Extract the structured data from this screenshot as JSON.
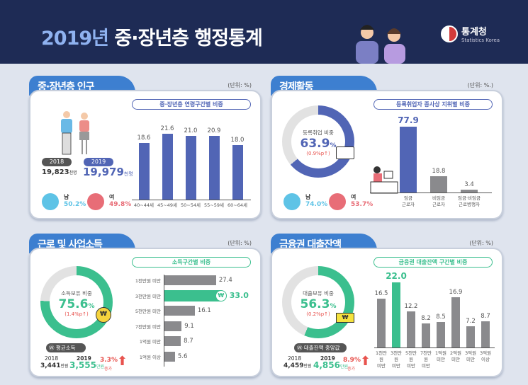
{
  "header": {
    "year": "2019년",
    "title": "중·장년층 행정통계",
    "logo_kr": "통계청",
    "logo_en": "Statistics Korea"
  },
  "population": {
    "title": "중·장년층 인구",
    "unit": "(단위: %)",
    "chart_title": "중·장년층 연령구간별 비중",
    "y2018": "2018",
    "v2018": "19,823",
    "v2018_unit": "천명",
    "y2019": "2019",
    "v2019": "19,979",
    "v2019_unit": "천명",
    "male_label": "남",
    "male": "50.2%",
    "female_label": "여",
    "female": "49.8%"
  },
  "economy": {
    "title": "경제활동",
    "unit": "(단위: %.)",
    "chart_title": "등록취업자 종사상 지위별 비중",
    "donut_label": "등록취업 비중",
    "donut_value": "63.9",
    "donut_pct": "%",
    "donut_change": "(0.9%p↑)",
    "donut_fraction": 0.639,
    "male_label": "남",
    "male": "74.0%",
    "female_label": "여",
    "female": "53.7%"
  },
  "income": {
    "title": "근로 및 사업소득",
    "unit": "(단위: %)",
    "chart_title": "소득구간별 비중",
    "donut_label": "소득보유 비중",
    "donut_value": "75.6",
    "donut_pct": "%",
    "donut_change": "(1.4%p↑)",
    "donut_fraction": 0.756,
    "avg_label": "평균소득",
    "y2018": "2018",
    "v2018": "3,441",
    "v2019_label": "2019",
    "v2019": "3,555",
    "unit_man": "만원",
    "increase": "3.3%",
    "increase_label": "증가"
  },
  "loan": {
    "title": "금융권 대출잔액",
    "unit": "(단위: %)",
    "chart_title": "금융권 대출잔액 구간별 비중",
    "donut_label": "대출보유 비중",
    "donut_value": "56.3",
    "donut_pct": "%",
    "donut_change": "(0.2%p↑)",
    "donut_fraction": 0.563,
    "median_label": "대출잔액 중앙값",
    "y2018": "2018",
    "v2018": "4,459",
    "v2019_label": "2019",
    "v2019": "4,856",
    "unit_man": "만원",
    "increase": "8.9%",
    "increase_label": "증가"
  },
  "chart_data": [
    {
      "type": "bar",
      "title": "중·장년층 연령구간별 비중",
      "categories": [
        "40~44세",
        "45~49세",
        "50~54세",
        "55~59세",
        "60~64세"
      ],
      "values": [
        18.6,
        21.6,
        21.0,
        20.9,
        18.0
      ],
      "ylabel": "%"
    },
    {
      "type": "bar",
      "title": "등록취업자 종사상 지위별 비중",
      "categories": [
        "임금\n근로자",
        "비임금\n근로자",
        "임금·비임금\n근로병행자"
      ],
      "values": [
        77.9,
        18.8,
        3.4
      ],
      "ylabel": "%"
    },
    {
      "type": "bar",
      "orientation": "horizontal",
      "title": "소득구간별 비중",
      "categories": [
        "1천만원 미만",
        "3천만원 미만",
        "5천만원 미만",
        "7천만원 미만",
        "1억원 미만",
        "1억원 이상"
      ],
      "values": [
        27.4,
        33.0,
        16.1,
        9.1,
        8.7,
        5.6
      ],
      "highlight": 1,
      "ylabel": "%"
    },
    {
      "type": "bar",
      "title": "금융권 대출잔액 구간별 비중",
      "categories": [
        "1천만원\n미만",
        "3천만원\n미만",
        "5천만원\n미만",
        "7천만원\n미만",
        "1억원\n미만",
        "2억원\n미만",
        "3억원\n미만",
        "3억원\n이상"
      ],
      "values": [
        16.5,
        22.0,
        12.2,
        8.2,
        8.5,
        16.9,
        7.2,
        8.7
      ],
      "highlight": 1,
      "ylabel": "%"
    }
  ],
  "colors": {
    "blue": "#5165b5",
    "green": "#3bbf8e",
    "gray": "#8a8a8d",
    "red": "#e8534e",
    "donut_bg": "#e2e2e2"
  }
}
